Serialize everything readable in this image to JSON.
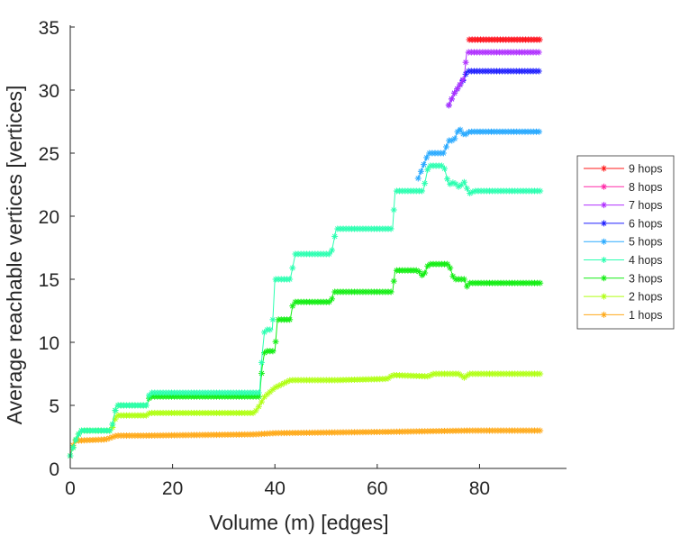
{
  "chart_data": {
    "type": "line",
    "title": "",
    "xlabel": "Volume (m) [edges]",
    "ylabel": "Average reachable vertices [vertices]",
    "xlim": [
      0,
      97
    ],
    "ylim": [
      0,
      35
    ],
    "xticks": [
      0,
      20,
      40,
      60,
      80
    ],
    "yticks": [
      0,
      5,
      10,
      15,
      20,
      25,
      30,
      35
    ],
    "grid": false,
    "legend_position": "outside-right",
    "series": [
      {
        "name": "9 hops",
        "color": "#ff1a1a",
        "points": [
          [
            78,
            34
          ],
          [
            92,
            34
          ]
        ]
      },
      {
        "name": "8 hops",
        "color": "#ff2aa8",
        "points": [
          [
            78,
            34
          ],
          [
            92,
            34
          ]
        ]
      },
      {
        "name": "7 hops",
        "color": "#b030ff",
        "points": [
          [
            74,
            28.8
          ],
          [
            75,
            29.7
          ],
          [
            76,
            30.3
          ],
          [
            77,
            31
          ],
          [
            77.5,
            33
          ],
          [
            92,
            33
          ]
        ]
      },
      {
        "name": "6 hops",
        "color": "#1f1fff",
        "points": [
          [
            74,
            28.8
          ],
          [
            75,
            29.7
          ],
          [
            76,
            30.3
          ],
          [
            77,
            30.9
          ],
          [
            77.5,
            31.5
          ],
          [
            92,
            31.5
          ]
        ]
      },
      {
        "name": "5 hops",
        "color": "#2aaaff",
        "points": [
          [
            68,
            23
          ],
          [
            69,
            24
          ],
          [
            70,
            25
          ],
          [
            73,
            25
          ],
          [
            74,
            26
          ],
          [
            75,
            26
          ],
          [
            76,
            27
          ],
          [
            77,
            26.4
          ],
          [
            78,
            26.7
          ],
          [
            92,
            26.7
          ]
        ]
      },
      {
        "name": "4 hops",
        "color": "#2affb0",
        "points": [
          [
            0,
            1
          ],
          [
            1,
            2.2
          ],
          [
            2,
            3
          ],
          [
            8,
            3
          ],
          [
            9,
            5
          ],
          [
            15,
            5
          ],
          [
            15.5,
            6
          ],
          [
            37,
            6
          ],
          [
            37.5,
            9
          ],
          [
            38,
            11
          ],
          [
            39.5,
            11
          ],
          [
            40,
            15
          ],
          [
            43,
            15
          ],
          [
            43.5,
            16
          ],
          [
            44,
            17
          ],
          [
            51,
            17
          ],
          [
            52,
            19
          ],
          [
            63,
            19
          ],
          [
            63.5,
            22
          ],
          [
            69,
            22
          ],
          [
            70,
            24
          ],
          [
            73,
            24
          ],
          [
            74,
            22.5
          ],
          [
            75,
            22.7
          ],
          [
            76,
            22.3
          ],
          [
            77,
            22.7
          ],
          [
            78,
            21.8
          ],
          [
            79,
            22
          ],
          [
            92,
            22
          ]
        ]
      },
      {
        "name": "3 hops",
        "color": "#14ee14",
        "points": [
          [
            0,
            1
          ],
          [
            1,
            2.2
          ],
          [
            2,
            3
          ],
          [
            8,
            3
          ],
          [
            8.5,
            4
          ],
          [
            9,
            5
          ],
          [
            15,
            5
          ],
          [
            15.5,
            5.7
          ],
          [
            37,
            5.7
          ],
          [
            37.5,
            8
          ],
          [
            38,
            9.3
          ],
          [
            40,
            9.3
          ],
          [
            40.5,
            11.8
          ],
          [
            43,
            11.8
          ],
          [
            43.5,
            13
          ],
          [
            44,
            13.2
          ],
          [
            51,
            13.2
          ],
          [
            51.5,
            14
          ],
          [
            63,
            14
          ],
          [
            63.5,
            15.7
          ],
          [
            68,
            15.7
          ],
          [
            69,
            15.2
          ],
          [
            70,
            16.2
          ],
          [
            74,
            16.2
          ],
          [
            75,
            15
          ],
          [
            77,
            15
          ],
          [
            77.5,
            14.4
          ],
          [
            78,
            14.7
          ],
          [
            92,
            14.7
          ]
        ]
      },
      {
        "name": "2 hops",
        "color": "#b0ff14",
        "points": [
          [
            0,
            1
          ],
          [
            1,
            2.2
          ],
          [
            2,
            3
          ],
          [
            8,
            3
          ],
          [
            8.5,
            3.5
          ],
          [
            9,
            4.2
          ],
          [
            15,
            4.2
          ],
          [
            15.5,
            4.4
          ],
          [
            36,
            4.4
          ],
          [
            37,
            5
          ],
          [
            38,
            5.7
          ],
          [
            40,
            6.4
          ],
          [
            42,
            6.8
          ],
          [
            43,
            7
          ],
          [
            52,
            7
          ],
          [
            62,
            7.1
          ],
          [
            63,
            7.4
          ],
          [
            70,
            7.3
          ],
          [
            71,
            7.5
          ],
          [
            76,
            7.5
          ],
          [
            77,
            7.2
          ],
          [
            78,
            7.5
          ],
          [
            92,
            7.5
          ]
        ]
      },
      {
        "name": "1 hops",
        "color": "#ffaa1a",
        "points": [
          [
            0,
            1
          ],
          [
            0.5,
            1.8
          ],
          [
            1,
            2.2
          ],
          [
            7,
            2.3
          ],
          [
            9,
            2.6
          ],
          [
            14,
            2.6
          ],
          [
            36,
            2.7
          ],
          [
            40,
            2.8
          ],
          [
            62,
            2.9
          ],
          [
            78,
            3.0
          ],
          [
            92,
            3.0
          ]
        ]
      }
    ]
  }
}
